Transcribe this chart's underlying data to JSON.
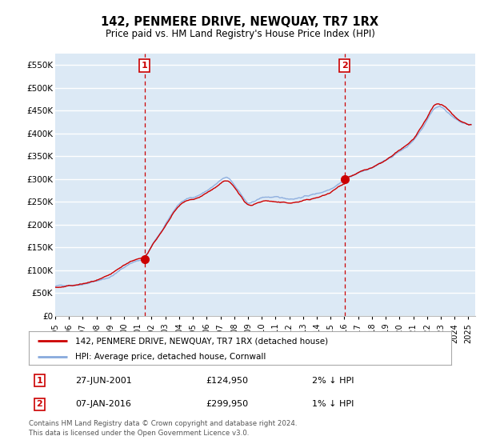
{
  "title": "142, PENMERE DRIVE, NEWQUAY, TR7 1RX",
  "subtitle": "Price paid vs. HM Land Registry's House Price Index (HPI)",
  "legend_property": "142, PENMERE DRIVE, NEWQUAY, TR7 1RX (detached house)",
  "legend_hpi": "HPI: Average price, detached house, Cornwall",
  "footnote": "Contains HM Land Registry data © Crown copyright and database right 2024.\nThis data is licensed under the Open Government Licence v3.0.",
  "transaction1": {
    "label": "1",
    "date": "27-JUN-2001",
    "price": "£124,950",
    "hpi": "2% ↓ HPI"
  },
  "transaction2": {
    "label": "2",
    "date": "07-JAN-2016",
    "price": "£299,950",
    "hpi": "1% ↓ HPI"
  },
  "ylim": [
    0,
    575000
  ],
  "yticks": [
    0,
    50000,
    100000,
    150000,
    200000,
    250000,
    300000,
    350000,
    400000,
    450000,
    500000,
    550000
  ],
  "ytick_labels": [
    "£0",
    "£50K",
    "£100K",
    "£150K",
    "£200K",
    "£250K",
    "£300K",
    "£350K",
    "£400K",
    "£450K",
    "£500K",
    "£550K"
  ],
  "property_color": "#cc0000",
  "hpi_color": "#88aadd",
  "vline_color": "#cc0000",
  "bg_color": "#dce9f5",
  "grid_color": "#ffffff",
  "marker_color": "#cc0000",
  "purchase1_x": 2001.49,
  "purchase1_y": 124950,
  "purchase2_x": 2016.02,
  "purchase2_y": 299950,
  "xmin": 1995.0,
  "xmax": 2025.5
}
